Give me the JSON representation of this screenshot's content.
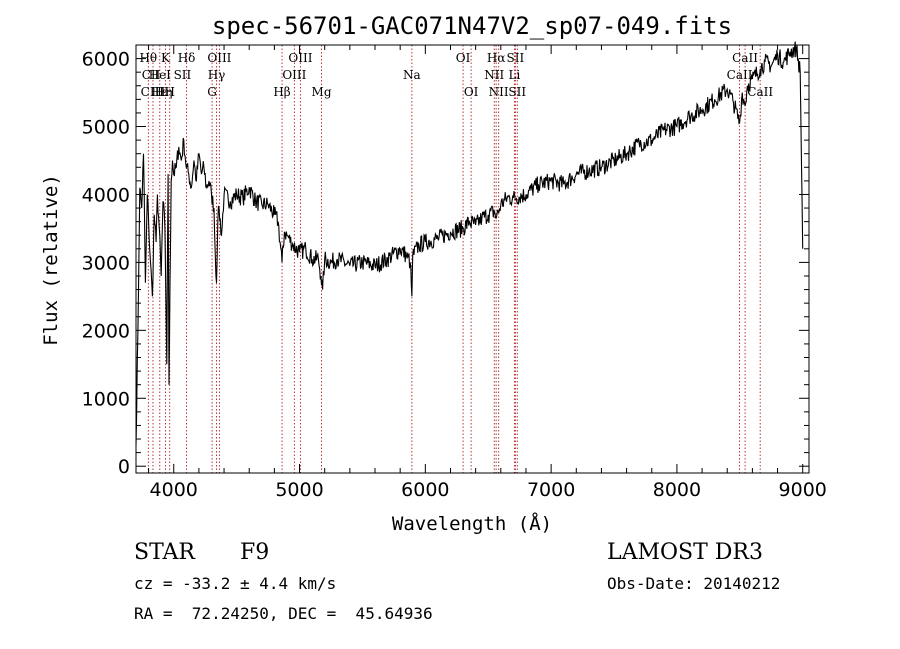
{
  "chart_data": {
    "type": "line",
    "title": "spec-56701-GAC071N47V2_sp07-049.fits",
    "xlabel": "Wavelength (Å)",
    "ylabel": "Flux (relative)",
    "xlim": [
      3700,
      9050
    ],
    "ylim": [
      -100,
      6200
    ],
    "x_ticks": [
      4000,
      5000,
      6000,
      7000,
      8000,
      9000
    ],
    "y_ticks": [
      0,
      1000,
      2000,
      3000,
      4000,
      5000,
      6000
    ],
    "series": [
      {
        "name": "flux",
        "x": [
          3700,
          3720,
          3730,
          3745,
          3760,
          3775,
          3790,
          3800,
          3815,
          3830,
          3845,
          3860,
          3870,
          3885,
          3900,
          3915,
          3930,
          3945,
          3955,
          3962,
          3970,
          3980,
          3990,
          4000,
          4020,
          4040,
          4060,
          4080,
          4100,
          4120,
          4140,
          4160,
          4180,
          4200,
          4220,
          4240,
          4260,
          4280,
          4300,
          4320,
          4330,
          4340,
          4350,
          4360,
          4380,
          4400,
          4450,
          4500,
          4550,
          4600,
          4650,
          4700,
          4750,
          4800,
          4830,
          4861,
          4880,
          4900,
          4950,
          5000,
          5050,
          5100,
          5150,
          5170,
          5183,
          5200,
          5250,
          5300,
          5400,
          5500,
          5600,
          5700,
          5800,
          5850,
          5880,
          5893,
          5900,
          5950,
          6000,
          6100,
          6200,
          6300,
          6350,
          6400,
          6450,
          6500,
          6550,
          6563,
          6600,
          6650,
          6700,
          6800,
          6900,
          7000,
          7100,
          7200,
          7300,
          7400,
          7500,
          7600,
          7700,
          7800,
          7900,
          8000,
          8100,
          8200,
          8300,
          8400,
          8450,
          8498,
          8520,
          8542,
          8560,
          8600,
          8662,
          8700,
          8750,
          8800,
          8850,
          8900,
          8950,
          8980,
          9000
        ],
        "y": [
          300,
          2600,
          4100,
          3800,
          4600,
          2700,
          4000,
          3600,
          3000,
          2500,
          3700,
          3300,
          4000,
          3500,
          2800,
          3900,
          3500,
          1500,
          4300,
          1200,
          2700,
          4200,
          4500,
          4300,
          4400,
          4700,
          4500,
          4800,
          4400,
          4300,
          4100,
          4500,
          4200,
          4600,
          4300,
          4400,
          4100,
          4200,
          4000,
          3800,
          3100,
          2700,
          3600,
          3800,
          3400,
          4000,
          3900,
          4000,
          3950,
          4100,
          3900,
          3850,
          3850,
          3700,
          3600,
          3000,
          3450,
          3400,
          3250,
          3150,
          3200,
          3050,
          3050,
          2800,
          2600,
          3050,
          3000,
          3050,
          2950,
          3000,
          2950,
          3050,
          3200,
          3100,
          3000,
          2500,
          3100,
          3250,
          3300,
          3350,
          3450,
          3500,
          3600,
          3550,
          3650,
          3700,
          3750,
          3650,
          3850,
          3950,
          3950,
          4000,
          4150,
          4200,
          4150,
          4300,
          4350,
          4400,
          4500,
          4600,
          4750,
          4800,
          4950,
          5000,
          5150,
          5250,
          5400,
          5550,
          5350,
          5050,
          5500,
          5300,
          5600,
          5700,
          5850,
          5950,
          5900,
          6050,
          5950,
          6100,
          6150,
          5800,
          3200
        ]
      }
    ],
    "line_markers": [
      {
        "label": "Hθ",
        "row": 1,
        "wl": 3798
      },
      {
        "label": "CII",
        "row": 2,
        "wl": 3820
      },
      {
        "label": "CIII",
        "row": 3,
        "wl": 3830
      },
      {
        "label": "Hε",
        "row": 3,
        "wl": 3889
      },
      {
        "label": "K",
        "row": 1,
        "wl": 3934
      },
      {
        "label": "HeI",
        "row": 2,
        "wl": 3889
      },
      {
        "label": "Hη",
        "row": 3,
        "wl": 3920
      },
      {
        "label": "H",
        "row": 3,
        "wl": 3968
      },
      {
        "label": "Hδ",
        "row": 1,
        "wl": 4102
      },
      {
        "label": "SII",
        "row": 2,
        "wl": 4069
      },
      {
        "label": "OIII",
        "row": 1,
        "wl": 4363
      },
      {
        "label": "Hγ",
        "row": 2,
        "wl": 4340
      },
      {
        "label": "G",
        "row": 3,
        "wl": 4305
      },
      {
        "label": "Hβ",
        "row": 3,
        "wl": 4861
      },
      {
        "label": "OIII",
        "row": 1,
        "wl": 5007
      },
      {
        "label": "OIII",
        "row": 2,
        "wl": 4959
      },
      {
        "label": "Mg",
        "row": 3,
        "wl": 5175
      },
      {
        "label": "Na",
        "row": 2,
        "wl": 5893
      },
      {
        "label": "OI",
        "row": 1,
        "wl": 6300
      },
      {
        "label": "OI",
        "row": 3,
        "wl": 6364
      },
      {
        "label": "Hα",
        "row": 1,
        "wl": 6563
      },
      {
        "label": "SII",
        "row": 1,
        "wl": 6716
      },
      {
        "label": "NII",
        "row": 2,
        "wl": 6548
      },
      {
        "label": "Li",
        "row": 2,
        "wl": 6708
      },
      {
        "label": "NII",
        "row": 3,
        "wl": 6583
      },
      {
        "label": "SII",
        "row": 3,
        "wl": 6731
      },
      {
        "label": "CaII",
        "row": 1,
        "wl": 8542
      },
      {
        "label": "CaII",
        "row": 2,
        "wl": 8498
      },
      {
        "label": "CaII",
        "row": 3,
        "wl": 8662
      }
    ],
    "marker_lines_wl": [
      3798,
      3835,
      3889,
      3934,
      3968,
      4102,
      4305,
      4340,
      4363,
      4861,
      4959,
      5007,
      5175,
      5893,
      6300,
      6364,
      6548,
      6563,
      6583,
      6708,
      6716,
      6731,
      8498,
      8542,
      8662
    ],
    "marker_color": "#b22222"
  },
  "info": {
    "object_class": "STAR",
    "subclass": "F9",
    "survey": "LAMOST DR3",
    "redshift": "cz = -33.2 ± 4.4 km/s",
    "obs_date": "Obs-Date: 20140212",
    "coords": "RA =  72.24250, DEC =  45.64936"
  }
}
